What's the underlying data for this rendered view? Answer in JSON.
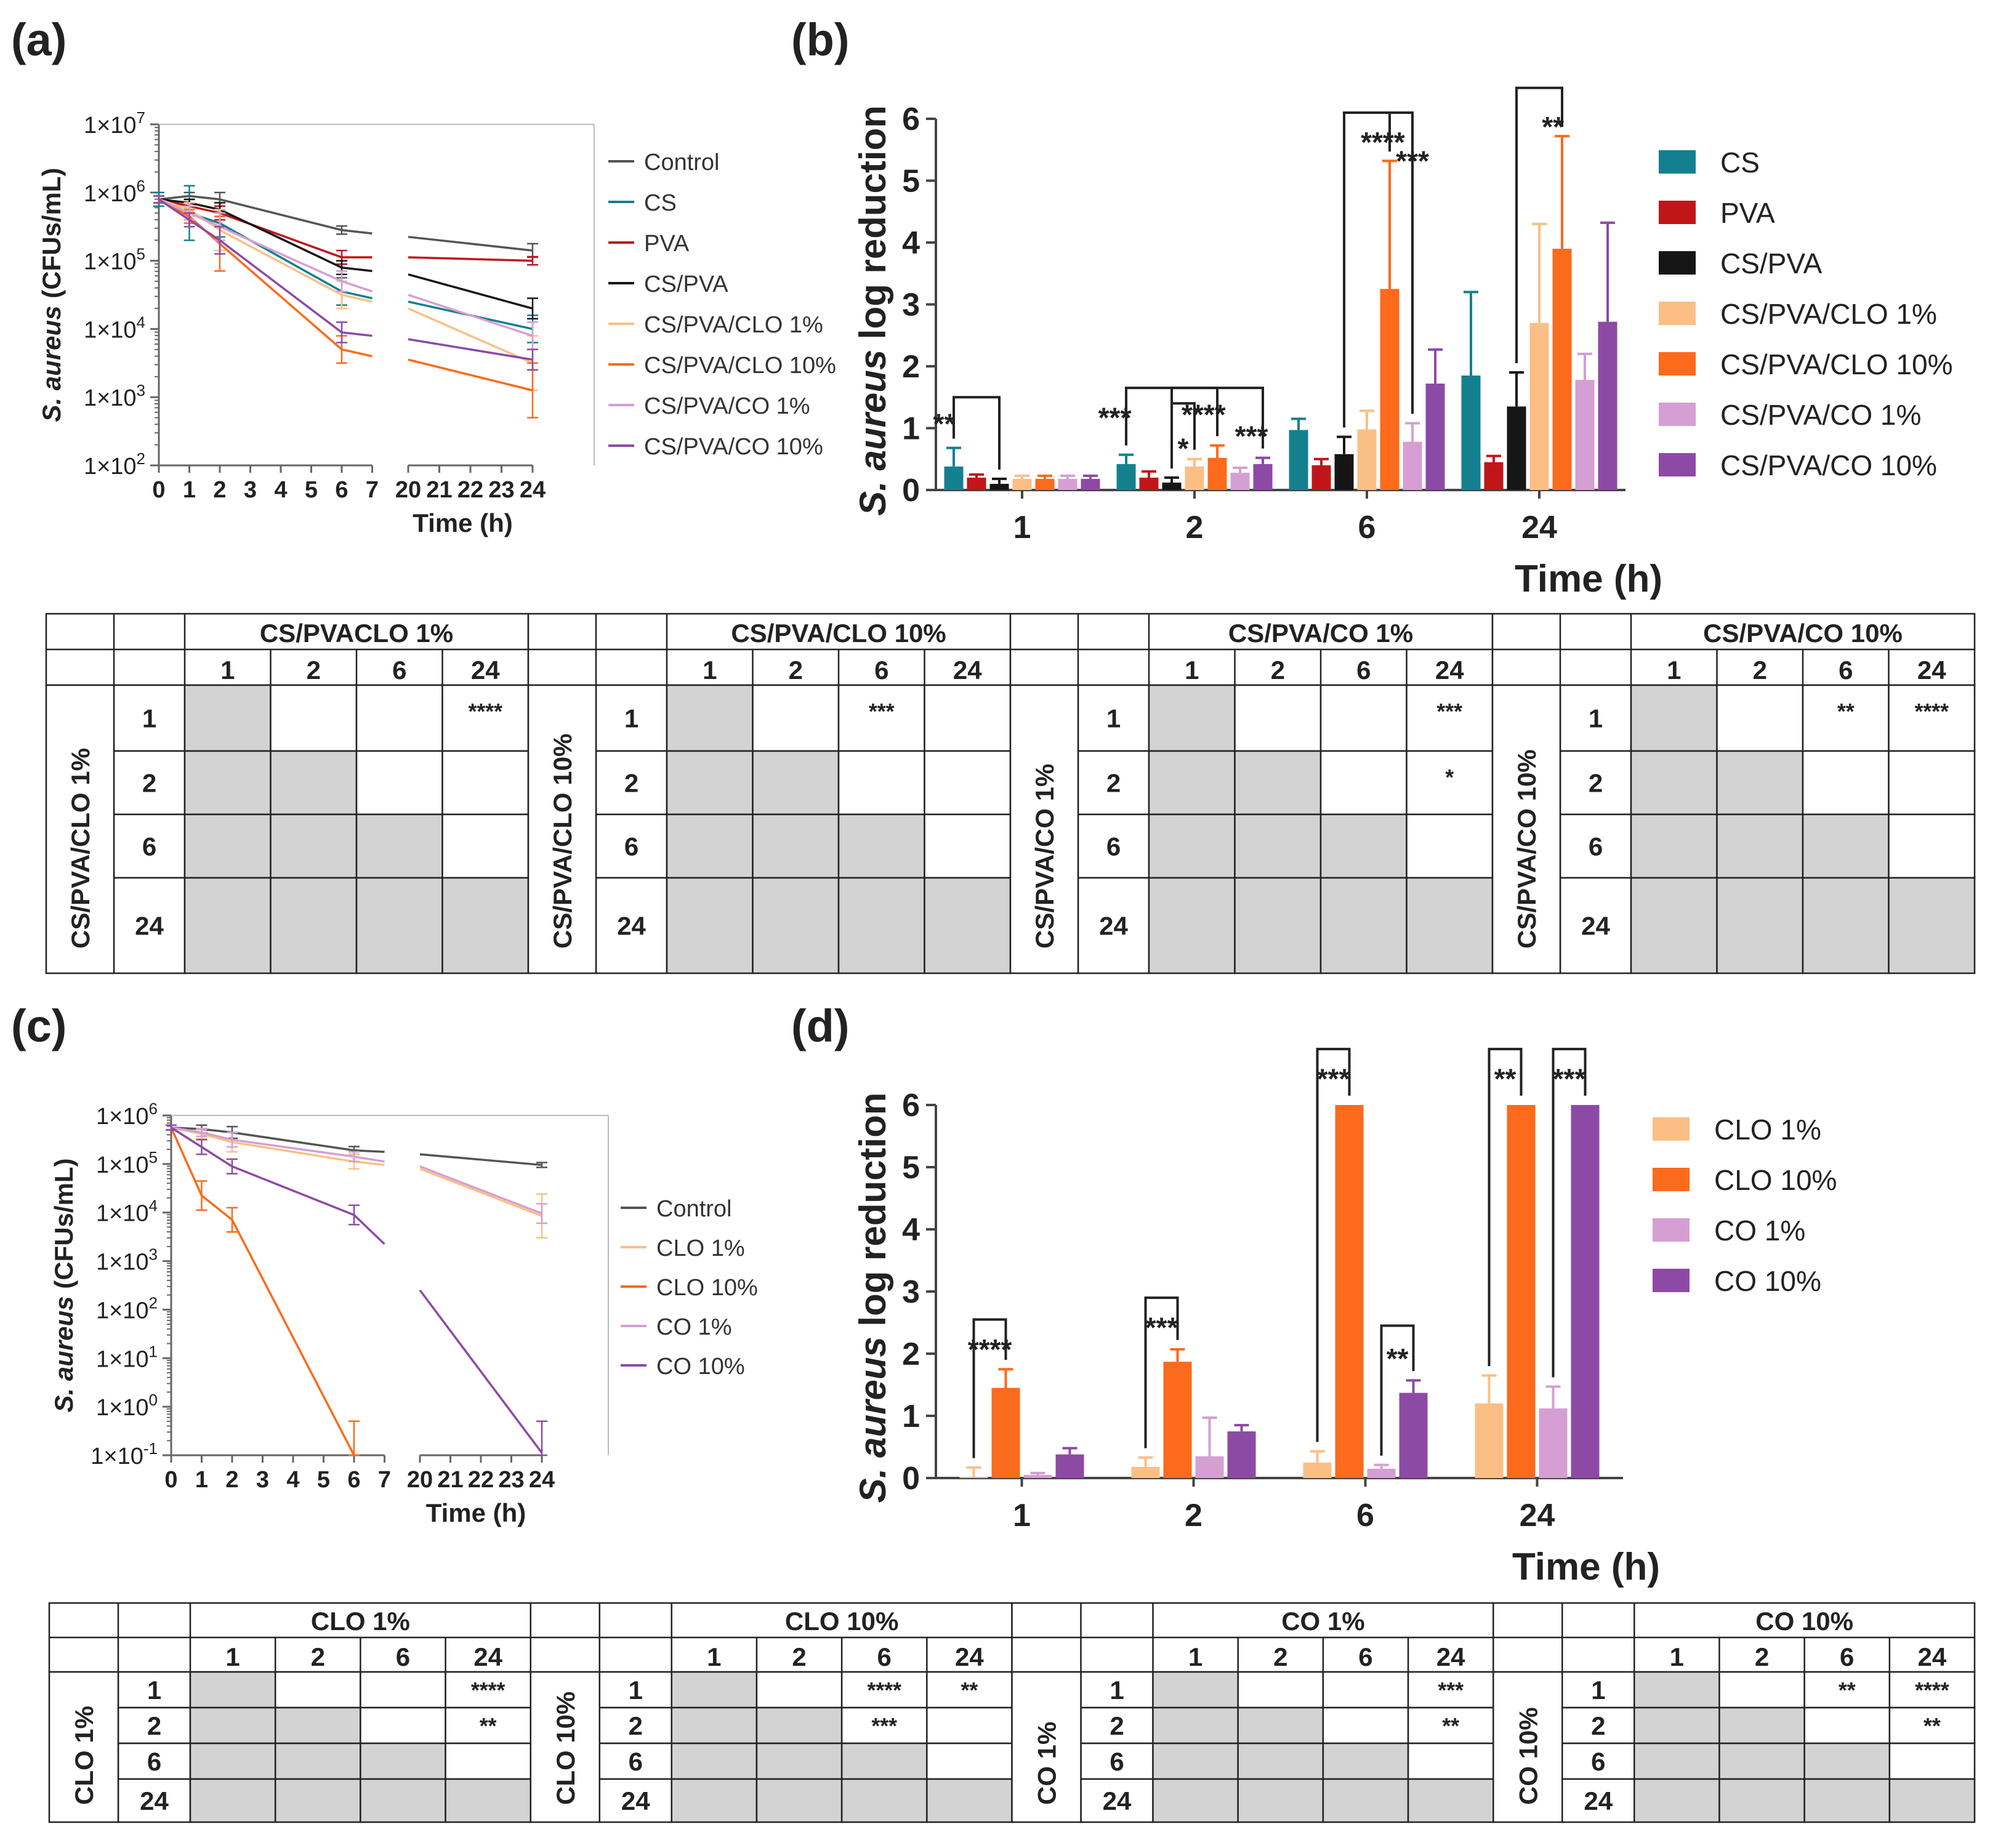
{
  "colors": {
    "Control": "#555555",
    "CS": "#14808f",
    "PVA": "#c0161a",
    "CS/PVA": "#161616",
    "CS/PVA/CLO 1%": "#fbbf85",
    "CS/PVA/CLO 10%": "#fc6a1c",
    "CS/PVA/CO 1%": "#d59fd3",
    "CS/PVA/CO 10%": "#8d4aa5",
    "CLO 1%": "#fbbf85",
    "CLO 10%": "#fc6a1c",
    "CO 1%": "#d59fd3",
    "CO 10%": "#8d4aa5",
    "cell_gray": "#d3d3d3"
  },
  "panels": {
    "a": "(a)",
    "b": "(b)",
    "c": "(c)",
    "d": "(d)"
  },
  "chart_data": [
    {
      "id": "a",
      "type": "line",
      "ylabel_italic": "S. aureus",
      "ylabel_rest": " (CFUs/mL)",
      "xlabel": "Time (h)",
      "y_scale": "log10",
      "ylim_exp": [
        2,
        7
      ],
      "ytick_labels": [
        "1×10",
        "1×10",
        "1×10",
        "1×10",
        "1×10",
        "1×10"
      ],
      "ytick_exps": [
        "2",
        "3",
        "4",
        "5",
        "6",
        "7"
      ],
      "x_break": true,
      "x_segment1_ticks": [
        "0",
        "1",
        "2",
        "3",
        "4",
        "5",
        "6",
        "7"
      ],
      "x_segment2_ticks": [
        "20",
        "21",
        "22",
        "23",
        "24"
      ],
      "x_points": [
        0,
        1,
        2,
        6,
        7,
        20,
        24
      ],
      "legend": [
        "Control",
        "CS",
        "PVA",
        "CS/PVA",
        "CS/PVA/CLO 1%",
        "CS/PVA/CLO 10%",
        "CS/PVA/CO 1%",
        "CS/PVA/CO 10%"
      ],
      "series": [
        {
          "name": "Control",
          "log_values": [
            5.9,
            5.95,
            5.9,
            5.45,
            5.4,
            5.35,
            5.15
          ],
          "err": [
            0.05,
            0.05,
            0.1,
            0.06,
            0,
            0,
            0.1
          ]
        },
        {
          "name": "CS",
          "log_values": [
            5.9,
            5.7,
            5.55,
            4.55,
            4.45,
            4.4,
            4.0
          ],
          "err": [
            0.1,
            0.4,
            0.2,
            0.2,
            0,
            0,
            0.2
          ]
        },
        {
          "name": "PVA",
          "log_values": [
            5.9,
            5.8,
            5.7,
            5.05,
            5.05,
            5.05,
            5.0
          ],
          "err": [
            0.05,
            0.1,
            0.1,
            0.1,
            0,
            0,
            0.06
          ]
        },
        {
          "name": "CS/PVA",
          "log_values": [
            5.9,
            5.85,
            5.75,
            4.9,
            4.85,
            4.8,
            4.3
          ],
          "err": [
            0.05,
            0.05,
            0.1,
            0.1,
            0,
            0,
            0.15
          ]
        },
        {
          "name": "CS/PVA/CLO 1%",
          "log_values": [
            5.9,
            5.75,
            5.45,
            4.5,
            4.4,
            4.3,
            3.5
          ],
          "err": [
            0.05,
            0.1,
            0.3,
            0.2,
            0,
            0,
            0.4
          ]
        },
        {
          "name": "CS/PVA/CLO 10%",
          "log_values": [
            5.9,
            5.65,
            5.25,
            3.7,
            3.6,
            3.55,
            3.1
          ],
          "err": [
            0.05,
            0.1,
            0.4,
            0.2,
            0,
            0,
            0.4
          ]
        },
        {
          "name": "CS/PVA/CO 1%",
          "log_values": [
            5.9,
            5.7,
            5.5,
            4.7,
            4.55,
            4.5,
            3.9
          ],
          "err": [
            0.05,
            0.1,
            0.2,
            0.15,
            0,
            0,
            0.2
          ]
        },
        {
          "name": "CS/PVA/CO 10%",
          "log_values": [
            5.9,
            5.6,
            5.3,
            3.95,
            3.9,
            3.85,
            3.55
          ],
          "err": [
            0.05,
            0.1,
            0.2,
            0.15,
            0,
            0,
            0.15
          ]
        }
      ]
    },
    {
      "id": "b",
      "type": "bar",
      "ylabel_italic": "S. aureus",
      "ylabel_rest": " log reduction",
      "xlabel": "Time (h)",
      "ylim": [
        0,
        6
      ],
      "yticks": [
        "0",
        "1",
        "2",
        "3",
        "4",
        "5",
        "6"
      ],
      "categories": [
        "1",
        "2",
        "6",
        "24"
      ],
      "legend": [
        "CS",
        "PVA",
        "CS/PVA",
        "CS/PVA/CLO 1%",
        "CS/PVA/CLO 10%",
        "CS/PVA/CO 1%",
        "CS/PVA/CO 10%"
      ],
      "series": [
        {
          "name": "CS",
          "values": [
            0.38,
            0.42,
            0.97,
            1.85
          ],
          "err": [
            0.3,
            0.15,
            0.18,
            1.35
          ]
        },
        {
          "name": "PVA",
          "values": [
            0.2,
            0.2,
            0.4,
            0.45
          ],
          "err": [
            0.05,
            0.1,
            0.1,
            0.1
          ]
        },
        {
          "name": "CS/PVA",
          "values": [
            0.1,
            0.12,
            0.58,
            1.35
          ],
          "err": [
            0.08,
            0.08,
            0.28,
            0.55
          ]
        },
        {
          "name": "CS/PVA/CLO 1%",
          "values": [
            0.18,
            0.38,
            0.98,
            2.7
          ],
          "err": [
            0.05,
            0.12,
            0.3,
            1.6
          ]
        },
        {
          "name": "CS/PVA/CLO 10%",
          "values": [
            0.18,
            0.52,
            3.25,
            3.9
          ],
          "err": [
            0.05,
            0.2,
            2.07,
            1.82
          ]
        },
        {
          "name": "CS/PVA/CO 1%",
          "values": [
            0.18,
            0.28,
            0.78,
            1.78
          ],
          "err": [
            0.05,
            0.08,
            0.3,
            0.42
          ]
        },
        {
          "name": "CS/PVA/CO 10%",
          "values": [
            0.18,
            0.42,
            1.72,
            2.72
          ],
          "err": [
            0.05,
            0.1,
            0.55,
            1.6
          ]
        }
      ],
      "annotations": [
        {
          "text": "**",
          "cat": 0,
          "from": 0,
          "to": 2,
          "y": 1.5,
          "tx": 0.08,
          "ty": 1.05
        },
        {
          "text": "***",
          "cat": 1,
          "from": 0,
          "to": 2,
          "y": 1.65,
          "tx": 0.0,
          "ty": 1.15
        },
        {
          "text": "*",
          "cat": 1,
          "from": 2,
          "to": 3,
          "y": 1.4,
          "tx": 3.0,
          "ty": 0.65
        },
        {
          "text": "****",
          "cat": 1,
          "from": 2,
          "to": 4,
          "y": 1.65,
          "tx": 3.9,
          "ty": 1.2
        },
        {
          "text": "***",
          "cat": 1,
          "from": 2,
          "to": 6,
          "y": 1.65,
          "tx": 6.0,
          "ty": 0.85
        },
        {
          "text": "****",
          "cat": 2,
          "from": 2,
          "to": 4,
          "y": 6.1,
          "tx": 4.2,
          "ty": 5.6
        },
        {
          "text": "***",
          "cat": 2,
          "from": 2,
          "to": 5,
          "y": 6.1,
          "tx": 5.5,
          "ty": 5.3
        },
        {
          "text": "**",
          "cat": 3,
          "from": 2,
          "to": 4,
          "y": 6.5,
          "tx": 4.1,
          "ty": 5.85
        }
      ]
    },
    {
      "id": "c",
      "type": "line",
      "ylabel_italic": "S. aureus",
      "ylabel_rest": " (CFUs/mL)",
      "xlabel": "Time (h)",
      "y_scale": "log10",
      "ylim_exp": [
        -1,
        6
      ],
      "ytick_labels": [
        "1×10",
        "1×10",
        "1×10",
        "1×10",
        "1×10",
        "1×10",
        "1×10",
        "1×10"
      ],
      "ytick_exps": [
        "-1",
        "0",
        "1",
        "2",
        "3",
        "4",
        "5",
        "6"
      ],
      "x_break": true,
      "x_segment1_ticks": [
        "0",
        "1",
        "2",
        "3",
        "4",
        "5",
        "6",
        "7"
      ],
      "x_segment2_ticks": [
        "20",
        "21",
        "22",
        "23",
        "24"
      ],
      "legend": [
        "Control",
        "CLO 1%",
        "CLO 10%",
        "CO 1%",
        "CO 10%"
      ],
      "series": [
        {
          "name": "Control",
          "x": [
            0,
            1,
            2,
            6,
            7,
            20,
            24
          ],
          "log_values": [
            5.75,
            5.72,
            5.65,
            5.28,
            5.25,
            5.2,
            4.98
          ],
          "err": [
            0.05,
            0.08,
            0.12,
            0.08,
            0,
            0,
            0.05
          ]
        },
        {
          "name": "CLO 1%",
          "x": [
            0,
            1,
            2,
            6,
            7,
            20,
            24
          ],
          "log_values": [
            5.75,
            5.62,
            5.45,
            5.05,
            4.98,
            4.9,
            3.93
          ],
          "err": [
            0.05,
            0.1,
            0.2,
            0.15,
            0,
            0,
            0.45
          ]
        },
        {
          "name": "CLO 10%",
          "x": [
            0,
            1,
            2,
            6
          ],
          "log_values": [
            5.75,
            4.35,
            3.85,
            -1.0
          ],
          "err": [
            0.05,
            0.3,
            0.25,
            0.7
          ]
        },
        {
          "name": "CO 1%",
          "x": [
            0,
            1,
            2,
            6,
            7,
            20,
            24
          ],
          "log_values": [
            5.75,
            5.65,
            5.5,
            5.15,
            5.05,
            4.95,
            3.98
          ],
          "err": [
            0.05,
            0.08,
            0.15,
            0.1,
            0,
            0,
            0.2
          ]
        },
        {
          "name": "CO 10%",
          "x": [
            0,
            1,
            2,
            6,
            7,
            20,
            24
          ],
          "log_values": [
            5.75,
            5.35,
            4.95,
            3.95,
            3.35,
            2.4,
            -0.95
          ],
          "err": [
            0.05,
            0.15,
            0.15,
            0.2,
            0,
            0,
            0.65
          ]
        }
      ]
    },
    {
      "id": "d",
      "type": "bar",
      "ylabel_italic": "S. aureus",
      "ylabel_rest": " log reduction",
      "xlabel": "Time (h)",
      "ylim": [
        0,
        6
      ],
      "yticks": [
        "0",
        "1",
        "2",
        "3",
        "4",
        "5",
        "6"
      ],
      "categories": [
        "1",
        "2",
        "6",
        "24"
      ],
      "legend": [
        "CLO 1%",
        "CLO 10%",
        "CO 1%",
        "CO 10%"
      ],
      "series": [
        {
          "name": "CLO 1%",
          "values": [
            0.02,
            0.18,
            0.25,
            1.2
          ],
          "err": [
            0.15,
            0.15,
            0.18,
            0.45
          ]
        },
        {
          "name": "CLO 10%",
          "values": [
            1.45,
            1.87,
            6.0,
            6.0
          ],
          "err": [
            0.3,
            0.2,
            0,
            0
          ]
        },
        {
          "name": "CO 1%",
          "values": [
            0.05,
            0.35,
            0.15,
            1.12
          ],
          "err": [
            0.03,
            0.62,
            0.06,
            0.35
          ]
        },
        {
          "name": "CO 10%",
          "values": [
            0.38,
            0.75,
            1.37,
            6.0
          ],
          "err": [
            0.1,
            0.1,
            0.2,
            0
          ]
        }
      ],
      "annotations": [
        {
          "text": "****",
          "cat": 0,
          "from": 0,
          "to": 1,
          "y": 2.55,
          "tx": 1.0,
          "ty": 2.05
        },
        {
          "text": "***",
          "cat": 1,
          "from": 0,
          "to": 1,
          "y": 2.9,
          "tx": 1.0,
          "ty": 2.4
        },
        {
          "text": "***",
          "cat": 2,
          "from": 0,
          "to": 1,
          "y": 6.9,
          "tx": 1.0,
          "ty": 6.4
        },
        {
          "text": "**",
          "cat": 2,
          "from": 2,
          "to": 3,
          "y": 2.45,
          "tx": 3.0,
          "ty": 1.9
        },
        {
          "text": "**",
          "cat": 3,
          "from": 0,
          "to": 1,
          "y": 6.9,
          "tx": 1.0,
          "ty": 6.4
        },
        {
          "text": "***",
          "cat": 3,
          "from": 2,
          "to": 3,
          "y": 6.9,
          "tx": 3.0,
          "ty": 6.4
        }
      ]
    }
  ],
  "tables": [
    {
      "id": "table1",
      "row_header": [
        "1",
        "2",
        "6",
        "24"
      ],
      "blocks": [
        {
          "title": "CS/PVACLO 1%",
          "side": "CS/PVA/CLO 1%",
          "cols": [
            "1",
            "2",
            "6",
            "24"
          ],
          "stars": [
            [
              "",
              "",
              "",
              "****"
            ],
            [
              "",
              "",
              "",
              ""
            ],
            [
              "",
              "",
              "",
              ""
            ],
            [
              "",
              "",
              "",
              ""
            ]
          ]
        },
        {
          "title": "CS/PVA/CLO 10%",
          "side": "CS/PVA/CLO 10%",
          "cols": [
            "1",
            "2",
            "6",
            "24"
          ],
          "stars": [
            [
              "",
              "",
              "***",
              ""
            ],
            [
              "",
              "",
              "",
              ""
            ],
            [
              "",
              "",
              "",
              ""
            ],
            [
              "",
              "",
              "",
              ""
            ]
          ]
        },
        {
          "title": "CS/PVA/CO 1%",
          "side": "CS/PVA/CO 1%",
          "cols": [
            "1",
            "2",
            "6",
            "24"
          ],
          "stars": [
            [
              "",
              "",
              "",
              "***"
            ],
            [
              "",
              "",
              "",
              "*"
            ],
            [
              "",
              "",
              "",
              ""
            ],
            [
              "",
              "",
              "",
              ""
            ]
          ]
        },
        {
          "title": "CS/PVA/CO 10%",
          "side": "CS/PVA/CO 10%",
          "cols": [
            "1",
            "2",
            "6",
            "24"
          ],
          "stars": [
            [
              "",
              "",
              "**",
              "****"
            ],
            [
              "",
              "",
              "",
              ""
            ],
            [
              "",
              "",
              "",
              ""
            ],
            [
              "",
              "",
              "",
              ""
            ]
          ]
        }
      ]
    },
    {
      "id": "table2",
      "row_header": [
        "1",
        "2",
        "6",
        "24"
      ],
      "blocks": [
        {
          "title": "CLO 1%",
          "side": "CLO 1%",
          "cols": [
            "1",
            "2",
            "6",
            "24"
          ],
          "stars": [
            [
              "",
              "",
              "",
              "****"
            ],
            [
              "",
              "",
              "",
              "**"
            ],
            [
              "",
              "",
              "",
              ""
            ],
            [
              "",
              "",
              "",
              ""
            ]
          ]
        },
        {
          "title": "CLO 10%",
          "side": "CLO 10%",
          "cols": [
            "1",
            "2",
            "6",
            "24"
          ],
          "stars": [
            [
              "",
              "",
              "****",
              "**"
            ],
            [
              "",
              "",
              "***",
              ""
            ],
            [
              "",
              "",
              "",
              ""
            ],
            [
              "",
              "",
              "",
              ""
            ]
          ]
        },
        {
          "title": "CO 1%",
          "side": "CO 1%",
          "cols": [
            "1",
            "2",
            "6",
            "24"
          ],
          "stars": [
            [
              "",
              "",
              "",
              "***"
            ],
            [
              "",
              "",
              "",
              "**"
            ],
            [
              "",
              "",
              "",
              ""
            ],
            [
              "",
              "",
              "",
              ""
            ]
          ]
        },
        {
          "title": "CO 10%",
          "side": "CO 10%",
          "cols": [
            "1",
            "2",
            "6",
            "24"
          ],
          "stars": [
            [
              "",
              "",
              "**",
              "****"
            ],
            [
              "",
              "",
              "",
              "**"
            ],
            [
              "",
              "",
              "",
              ""
            ],
            [
              "",
              "",
              "",
              ""
            ]
          ]
        }
      ]
    }
  ]
}
